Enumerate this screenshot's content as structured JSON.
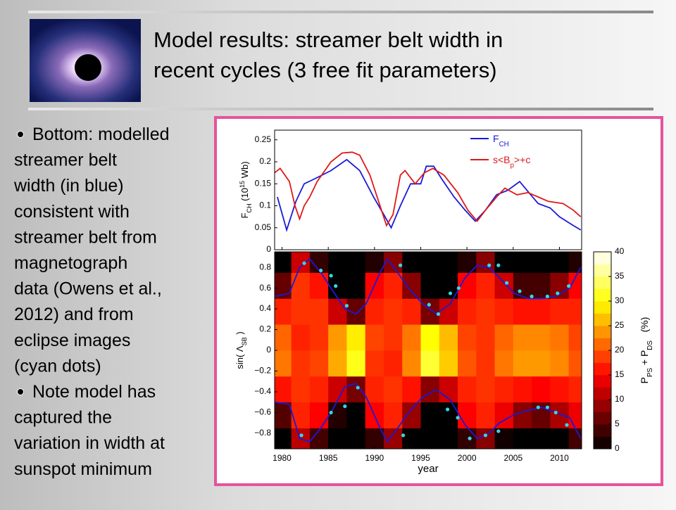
{
  "slide": {
    "title_lines": [
      "Model results: streamer belt width in",
      "recent cycles (3 free fit parameters)"
    ],
    "bullets": [
      {
        "lines": [
          "Bottom: modelled",
          "streamer belt",
          "width (in blue)",
          "consistent with",
          "streamer belt from",
          "magnetograph",
          "data (Owens et al.,",
          "2012) and from",
          "eclipse images",
          "(cyan dots)"
        ]
      },
      {
        "lines": [
          "Note model has",
          "captured the",
          "variation in width at",
          "sunspot minimum"
        ]
      }
    ]
  },
  "chart_data": [
    {
      "type": "line",
      "ylabel": [
        {
          "text": "F"
        },
        {
          "text": "CH",
          "shift": "sub"
        },
        {
          "text": " (10"
        },
        {
          "text": "15",
          "shift": "super"
        },
        {
          "text": " Wb)"
        }
      ],
      "xlim": [
        1979.2,
        2012.4
      ],
      "ylim": [
        0,
        0.272
      ],
      "yticks": [
        0,
        0.05,
        0.1,
        0.15,
        0.2,
        0.25
      ],
      "legend": "upper right",
      "series": [
        {
          "name": [
            {
              "text": "F"
            },
            {
              "text": "CH",
              "shift": "sub"
            }
          ],
          "color": "#1a1ad8",
          "x": [
            1979.5,
            1980.5,
            1981.5,
            1982.4,
            1983.4,
            1985.3,
            1987.0,
            1988.4,
            1989.9,
            1991.0,
            1991.8,
            1992.8,
            1993.9,
            1995.0,
            1995.6,
            1996.4,
            1997.3,
            1998.6,
            1999.8,
            2000.9,
            2002.0,
            2003.2,
            2004.4,
            2005.7,
            2006.7,
            2007.7,
            2009.0,
            2010.0,
            2011.5,
            2012.3
          ],
          "values": [
            0.12,
            0.045,
            0.11,
            0.15,
            0.16,
            0.18,
            0.205,
            0.18,
            0.12,
            0.08,
            0.05,
            0.1,
            0.15,
            0.15,
            0.19,
            0.19,
            0.16,
            0.12,
            0.09,
            0.065,
            0.09,
            0.125,
            0.135,
            0.155,
            0.13,
            0.105,
            0.095,
            0.075,
            0.055,
            0.045
          ]
        },
        {
          "name": [
            {
              "text": "s<B"
            },
            {
              "text": "p",
              "shift": "sub"
            },
            {
              "text": ">+c"
            }
          ],
          "color": "#e01818",
          "x": [
            1979.2,
            1979.8,
            1980.8,
            1981.4,
            1981.9,
            1982.4,
            1983.0,
            1983.8,
            1985.3,
            1986.5,
            1987.6,
            1988.4,
            1989.5,
            1990.6,
            1991.3,
            1992.0,
            1992.8,
            1993.3,
            1994.4,
            1995.4,
            1996.3,
            1997.5,
            1999.0,
            2000.1,
            2001.1,
            2002.0,
            2003.2,
            2004.1,
            2005.4,
            2006.6,
            2007.7,
            2008.8,
            2010.4,
            2011.5,
            2012.3
          ],
          "values": [
            0.175,
            0.185,
            0.155,
            0.1,
            0.07,
            0.1,
            0.12,
            0.155,
            0.2,
            0.22,
            0.222,
            0.215,
            0.17,
            0.1,
            0.055,
            0.08,
            0.17,
            0.18,
            0.15,
            0.175,
            0.185,
            0.17,
            0.13,
            0.09,
            0.065,
            0.09,
            0.12,
            0.14,
            0.125,
            0.13,
            0.12,
            0.11,
            0.105,
            0.09,
            0.075
          ]
        }
      ]
    },
    {
      "type": "heatmap",
      "xlabel": "year",
      "ylabel": [
        {
          "text": "sin( Λ"
        },
        {
          "text": "SB",
          "shift": "sub"
        },
        {
          "text": " )"
        }
      ],
      "xlim": [
        1979.2,
        2012.4
      ],
      "ylim": [
        -0.95,
        0.95
      ],
      "xticks": [
        1980,
        1985,
        1990,
        1995,
        2000,
        2005,
        2010
      ],
      "yticks": [
        {
          "value": -0.8,
          "label": "−0.8"
        },
        {
          "value": -0.6,
          "label": "−0.6"
        },
        {
          "value": -0.4,
          "label": "−0.4"
        },
        {
          "value": -0.2,
          "label": "−0.2"
        },
        0,
        0.2,
        0.4,
        0.6,
        0.8
      ],
      "x_bins": [
        1979.2,
        1981,
        1983,
        1985,
        1987,
        1989,
        1991,
        1993,
        1995,
        1997,
        1999,
        2001,
        2003,
        2005,
        2007,
        2009,
        2011,
        2012.4
      ],
      "y_bins": [
        -0.95,
        -0.75,
        -0.5,
        -0.25,
        0,
        0.25,
        0.5,
        0.75,
        0.95
      ],
      "values": [
        [
          0,
          11,
          4,
          0,
          0,
          3,
          9,
          0,
          0,
          0,
          3,
          8,
          1,
          0,
          0,
          0,
          4
        ],
        [
          5,
          17,
          15,
          2,
          0,
          15,
          17,
          9,
          0,
          0,
          15,
          17,
          14,
          8,
          6,
          10,
          14
        ],
        [
          16,
          18,
          17,
          12,
          7,
          17,
          18,
          16,
          8,
          12,
          17,
          18,
          17,
          16,
          15,
          16,
          17
        ],
        [
          22,
          18,
          19,
          25,
          31,
          18,
          17,
          23,
          32,
          27,
          20,
          18,
          22,
          24,
          24,
          23,
          20
        ],
        [
          21,
          17,
          18,
          24,
          29,
          19,
          18,
          22,
          30,
          26,
          19,
          18,
          21,
          23,
          23,
          22,
          19
        ],
        [
          17,
          18,
          18,
          12,
          6,
          17,
          18,
          17,
          7,
          12,
          17,
          18,
          17,
          16,
          16,
          17,
          17
        ],
        [
          6,
          18,
          16,
          0,
          0,
          15,
          17,
          8,
          0,
          0,
          15,
          17,
          12,
          4,
          4,
          8,
          15
        ],
        [
          0,
          12,
          3,
          0,
          0,
          2,
          8,
          0,
          0,
          0,
          2,
          8,
          0,
          0,
          0,
          0,
          2
        ]
      ],
      "colormap": "hot",
      "colorbar": {
        "label": [
          {
            "text": "P"
          },
          {
            "text": "PS",
            "shift": "sub"
          },
          {
            "text": " + P"
          },
          {
            "text": "DS",
            "shift": "sub"
          },
          {
            "text": "   (%)"
          }
        ],
        "lim": [
          0,
          40
        ],
        "ticks": [
          0,
          5,
          10,
          15,
          20,
          25,
          30,
          35,
          40
        ]
      },
      "series": [
        {
          "type": "line",
          "color": "#1a1ad8",
          "x": [
            1979.2,
            1980.8,
            1981.9,
            1983.0,
            1984.2,
            1985.3,
            1986.8,
            1988.0,
            1989.1,
            1990.6,
            1991.4,
            1992.5,
            1993.7,
            1995.2,
            1996.7,
            1998.2,
            1999.8,
            2001.1,
            2002.4,
            2003.5,
            2005.1,
            2006.6,
            2008.1,
            2009.6,
            2011.1,
            2012.3
          ],
          "values": [
            0.52,
            0.55,
            0.8,
            0.88,
            0.75,
            0.6,
            0.4,
            0.35,
            0.45,
            0.75,
            0.88,
            0.75,
            0.6,
            0.45,
            0.35,
            0.45,
            0.7,
            0.82,
            0.8,
            0.7,
            0.55,
            0.5,
            0.5,
            0.52,
            0.6,
            0.8
          ]
        },
        {
          "type": "line",
          "color": "#1a1ad8",
          "x": [
            1979.2,
            1980.8,
            1981.9,
            1983.0,
            1984.2,
            1985.3,
            1986.8,
            1988.0,
            1989.1,
            1990.6,
            1991.4,
            1992.5,
            1993.7,
            1995.2,
            1996.7,
            1998.2,
            1999.8,
            2001.1,
            2002.4,
            2003.5,
            2005.1,
            2006.6,
            2008.1,
            2009.6,
            2011.1,
            2012.3
          ],
          "values": [
            -0.5,
            -0.52,
            -0.85,
            -0.88,
            -0.75,
            -0.6,
            -0.35,
            -0.32,
            -0.45,
            -0.75,
            -0.88,
            -0.75,
            -0.6,
            -0.45,
            -0.38,
            -0.48,
            -0.72,
            -0.85,
            -0.8,
            -0.7,
            -0.62,
            -0.58,
            -0.55,
            -0.6,
            -0.65,
            -0.85
          ]
        },
        {
          "type": "scatter",
          "color": "#33d8e6",
          "x": [
            1982.4,
            1984.2,
            1985.3,
            1985.8,
            1987.0,
            1992.8,
            1995.9,
            1996.9,
            1998.2,
            1999.1,
            2002.4,
            2003.4,
            2004.3,
            2005.7,
            2007.0,
            2008.7,
            2009.8,
            2011.0,
            1982.1,
            1985.3,
            1986.8,
            1988.2,
            1993.1,
            1997.9,
            1999.0,
            2000.3,
            2002.0,
            2003.4,
            2007.7,
            2008.7,
            2009.6,
            2010.8
          ],
          "values": [
            0.84,
            0.77,
            0.72,
            0.62,
            0.43,
            0.82,
            0.44,
            0.35,
            0.55,
            0.6,
            0.82,
            0.82,
            0.65,
            0.57,
            0.52,
            0.52,
            0.55,
            0.62,
            -0.82,
            -0.6,
            -0.54,
            -0.36,
            -0.82,
            -0.57,
            -0.65,
            -0.85,
            -0.82,
            -0.78,
            -0.55,
            -0.55,
            -0.6,
            -0.72
          ]
        }
      ]
    }
  ]
}
